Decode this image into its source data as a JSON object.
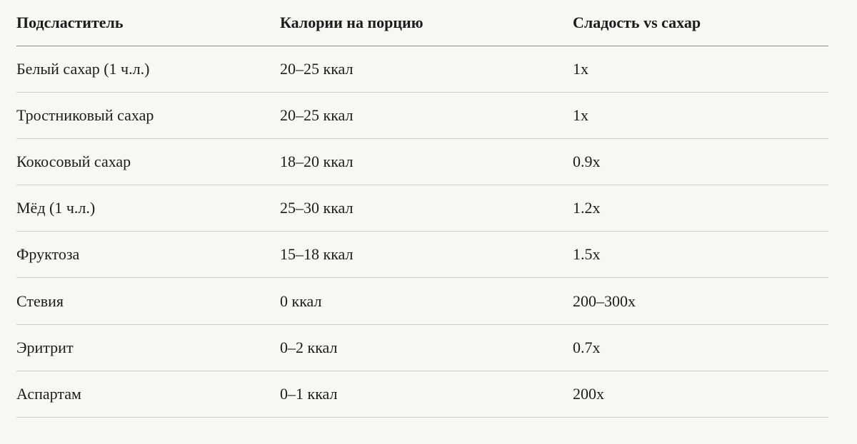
{
  "table": {
    "headers": [
      "Подсластитель",
      "Калории на порцию",
      "Сладость vs сахар"
    ],
    "rows": [
      [
        "Белый сахар (1 ч.л.)",
        "20–25 ккал",
        "1x"
      ],
      [
        "Тростниковый сахар",
        "20–25 ккал",
        "1x"
      ],
      [
        "Кокосовый сахар",
        "18–20 ккал",
        "0.9x"
      ],
      [
        "Мёд (1 ч.л.)",
        "25–30 ккал",
        "1.2x"
      ],
      [
        "Фруктоза",
        "15–18 ккал",
        "1.5x"
      ],
      [
        "Стевия",
        "0 ккал",
        "200–300x"
      ],
      [
        "Эритрит",
        "0–2 ккал",
        "0.7x"
      ],
      [
        "Аспартам",
        "0–1 ккал",
        "200x"
      ]
    ]
  }
}
